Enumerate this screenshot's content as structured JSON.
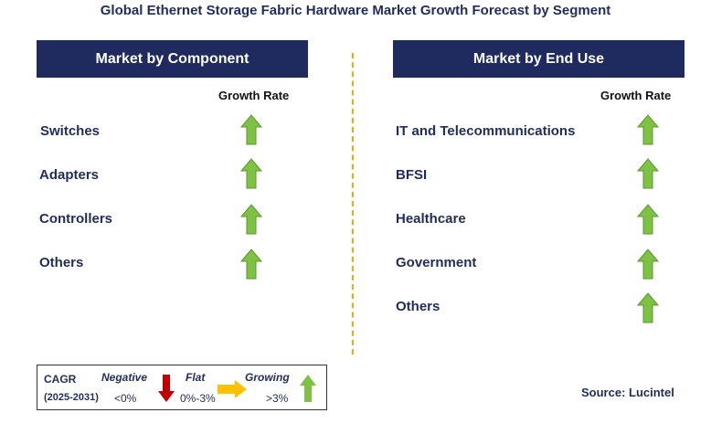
{
  "title": "Global Ethernet Storage Fabric Hardware Market Growth Forecast by Segment",
  "colors": {
    "header_bg": "#1f2a5e",
    "text": "#1f2d5a",
    "growing": "#7dc242",
    "negative": "#c00000",
    "flat": "#ffc000",
    "divider": "#f2a900"
  },
  "left_panel": {
    "header": "Market by Component",
    "growth_label": "Growth Rate",
    "items": [
      {
        "label": "Switches",
        "trend": "growing"
      },
      {
        "label": "Adapters",
        "trend": "growing"
      },
      {
        "label": "Controllers",
        "trend": "growing"
      },
      {
        "label": "Others",
        "trend": "growing"
      }
    ]
  },
  "right_panel": {
    "header": "Market by End Use",
    "growth_label": "Growth Rate",
    "items": [
      {
        "label": "IT and Telecommunications",
        "trend": "growing"
      },
      {
        "label": "BFSI",
        "trend": "growing"
      },
      {
        "label": "Healthcare",
        "trend": "growing"
      },
      {
        "label": "Government",
        "trend": "growing"
      },
      {
        "label": "Others",
        "trend": "growing"
      }
    ]
  },
  "legend": {
    "cagr_label": "CAGR",
    "period": "(2025-2031)",
    "negative_label": "Negative",
    "negative_range": "<0%",
    "flat_label": "Flat",
    "flat_range": "0%-3%",
    "growing_label": "Growing",
    "growing_range": ">3%"
  },
  "source": "Source: Lucintel"
}
